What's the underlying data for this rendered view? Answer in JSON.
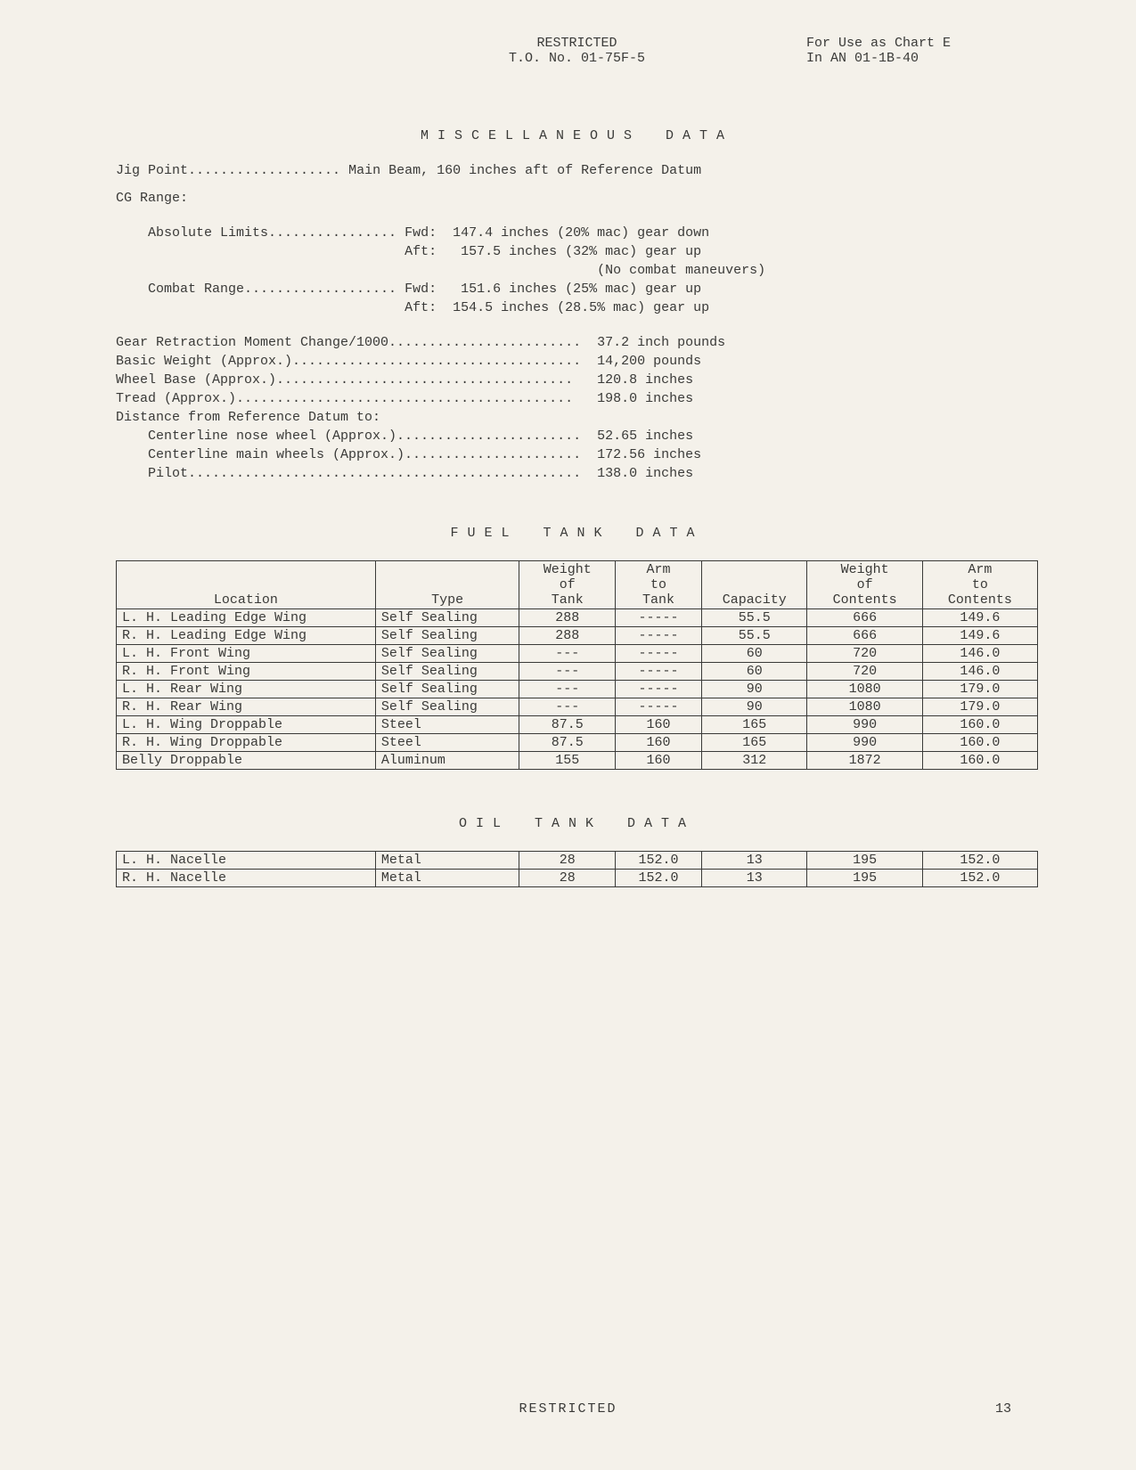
{
  "header": {
    "classification": "RESTRICTED",
    "to_no": "T.O. No. 01-75F-5",
    "use_as_1": "For Use as Chart E",
    "use_as_2": "In AN 01-1B-40"
  },
  "misc": {
    "title_w1": "MISCELLANEOUS",
    "title_w2": "DATA",
    "jig_point_label": "Jig Point...................",
    "jig_point_value": "Main Beam, 160 inches aft of Reference Datum",
    "cg_range_label": "CG Range:",
    "abs_limits_label": "Absolute Limits................",
    "abs_fwd": "Fwd:  147.4 inches (20% mac) gear down",
    "abs_aft": "Aft:   157.5 inches (32% mac) gear up",
    "abs_note": "                        (No combat maneuvers)",
    "combat_label": "Combat Range...................",
    "combat_fwd": "Fwd:   151.6 inches (25% mac) gear up",
    "combat_aft": "Aft:  154.5 inches (28.5% mac) gear up",
    "gear_line": "Gear Retraction Moment Change/1000........................  37.2 inch pounds",
    "basic_line": "Basic Weight (Approx.)....................................  14,200 pounds",
    "wheel_line": "Wheel Base (Approx.).....................................   120.8 inches",
    "tread_line": "Tread (Approx.)..........................................   198.0 inches",
    "dist_label": "Distance from Reference Datum to:",
    "dist_nose": "Centerline nose wheel (Approx.).......................  52.65 inches",
    "dist_main": "Centerline main wheels (Approx.)......................  172.56 inches",
    "dist_pilot": "Pilot.................................................  138.0 inches"
  },
  "fuel": {
    "title_w1": "FUEL",
    "title_w2": "TANK",
    "title_w3": "DATA",
    "columns": [
      "Location",
      "Type",
      "Weight\nof\nTank",
      "Arm\nto\nTank",
      "Capacity",
      "Weight\nof\nContents",
      "Arm\nto\nContents"
    ],
    "rows": [
      [
        "L. H. Leading Edge Wing",
        "Self Sealing",
        "288",
        "-----",
        "55.5",
        "666",
        "149.6"
      ],
      [
        "R. H. Leading Edge Wing",
        "Self Sealing",
        "288",
        "-----",
        "55.5",
        "666",
        "149.6"
      ],
      [
        "L. H. Front Wing",
        "Self Sealing",
        "---",
        "-----",
        "60",
        "720",
        "146.0"
      ],
      [
        "R. H. Front Wing",
        "Self Sealing",
        "---",
        "-----",
        "60",
        "720",
        "146.0"
      ],
      [
        "L. H. Rear Wing",
        "Self Sealing",
        "---",
        "-----",
        "90",
        "1080",
        "179.0"
      ],
      [
        "R. H. Rear Wing",
        "Self Sealing",
        "---",
        "-----",
        "90",
        "1080",
        "179.0"
      ],
      [
        "L. H. Wing Droppable",
        "Steel",
        "87.5",
        "160",
        "165",
        "990",
        "160.0"
      ],
      [
        "R. H. Wing Droppable",
        "Steel",
        "87.5",
        "160",
        "165",
        "990",
        "160.0"
      ],
      [
        "Belly Droppable",
        "Aluminum",
        "155",
        "160",
        "312",
        "1872",
        "160.0"
      ]
    ],
    "col_widths": [
      "27%",
      "15%",
      "10%",
      "9%",
      "11%",
      "12%",
      "12%"
    ]
  },
  "oil": {
    "title_w1": "OIL",
    "title_w2": "TANK",
    "title_w3": "DATA",
    "rows": [
      [
        "L. H. Nacelle",
        "Metal",
        "28",
        "152.0",
        "13",
        "195",
        "152.0"
      ],
      [
        "R. H. Nacelle",
        "Metal",
        "28",
        "152.0",
        "13",
        "195",
        "152.0"
      ]
    ]
  },
  "footer": {
    "classification": "RESTRICTED",
    "page": "13"
  }
}
